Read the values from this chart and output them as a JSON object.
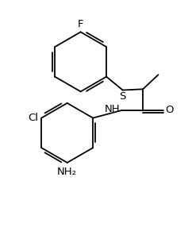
{
  "background_color": "#ffffff",
  "line_color": "#000000",
  "figsize": [
    2.42,
    2.96
  ],
  "dpi": 100,
  "F_label": "F",
  "S_label": "S",
  "O_label": "O",
  "NH_label": "NH",
  "Cl_label": "Cl",
  "NH2_label": "NH₂",
  "font_size": 9.5,
  "xlim": [
    0,
    10
  ],
  "ylim": [
    0,
    12.2
  ]
}
